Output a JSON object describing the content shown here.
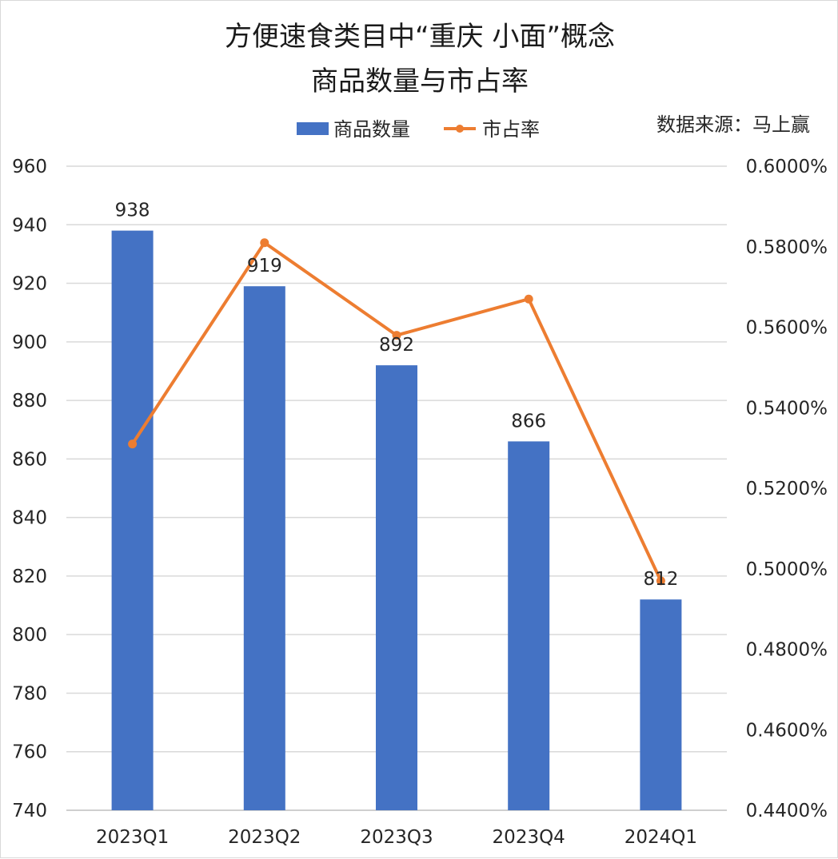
{
  "title_line1": "方便速食类目中“重庆 小面”概念",
  "title_line2": "商品数量与市占率",
  "source": "数据来源：马上赢",
  "chart_data": {
    "type": "bar",
    "categories": [
      "2023Q1",
      "2023Q2",
      "2023Q3",
      "2023Q4",
      "2024Q1"
    ],
    "series": [
      {
        "name": "商品数量",
        "type": "bar",
        "axis": "left",
        "color": "#4472C4",
        "values": [
          938,
          919,
          892,
          866,
          812
        ],
        "data_labels": [
          "938",
          "919",
          "892",
          "866",
          "812"
        ]
      },
      {
        "name": "市占率",
        "type": "line",
        "axis": "right",
        "color": "#ED7D31",
        "values": [
          0.531,
          0.581,
          0.558,
          0.567,
          0.497
        ]
      }
    ],
    "y_left": {
      "ylim": [
        740,
        960
      ],
      "ticks": [
        "960",
        "940",
        "920",
        "900",
        "880",
        "860",
        "840",
        "820",
        "800",
        "780",
        "760",
        "740"
      ]
    },
    "y_right": {
      "ylim": [
        0.44,
        0.6
      ],
      "ticks": [
        "0.6000%",
        "0.5800%",
        "0.5600%",
        "0.5400%",
        "0.5200%",
        "0.5000%",
        "0.4800%",
        "0.4600%",
        "0.4400%"
      ]
    },
    "grid": true,
    "legend_position": "top"
  }
}
